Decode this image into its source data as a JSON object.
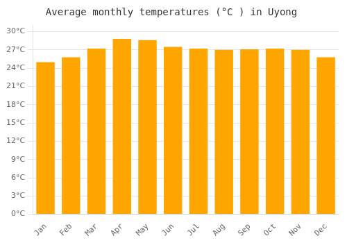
{
  "chart_data": {
    "type": "bar",
    "title": "Average monthly temperatures (°C ) in Uyong",
    "categories": [
      "Jan",
      "Feb",
      "Mar",
      "Apr",
      "May",
      "Jun",
      "Jul",
      "Aug",
      "Sep",
      "Oct",
      "Nov",
      "Dec"
    ],
    "values": [
      25.0,
      25.8,
      27.2,
      28.8,
      28.6,
      27.5,
      27.2,
      27.0,
      27.1,
      27.2,
      27.0,
      25.8
    ],
    "color": "#FFA500",
    "ylim": [
      0,
      31
    ],
    "yticks": [
      {
        "value": 0,
        "label": "0°C"
      },
      {
        "value": 3,
        "label": "3°C"
      },
      {
        "value": 6,
        "label": "6°C"
      },
      {
        "value": 9,
        "label": "9°C"
      },
      {
        "value": 12,
        "label": "12°C"
      },
      {
        "value": 15,
        "label": "15°C"
      },
      {
        "value": 18,
        "label": "18°C"
      },
      {
        "value": 21,
        "label": "21°C"
      },
      {
        "value": 24,
        "label": "24°C"
      },
      {
        "value": 27,
        "label": "27°C"
      },
      {
        "value": 30,
        "label": "30°C"
      }
    ],
    "grid": true
  }
}
